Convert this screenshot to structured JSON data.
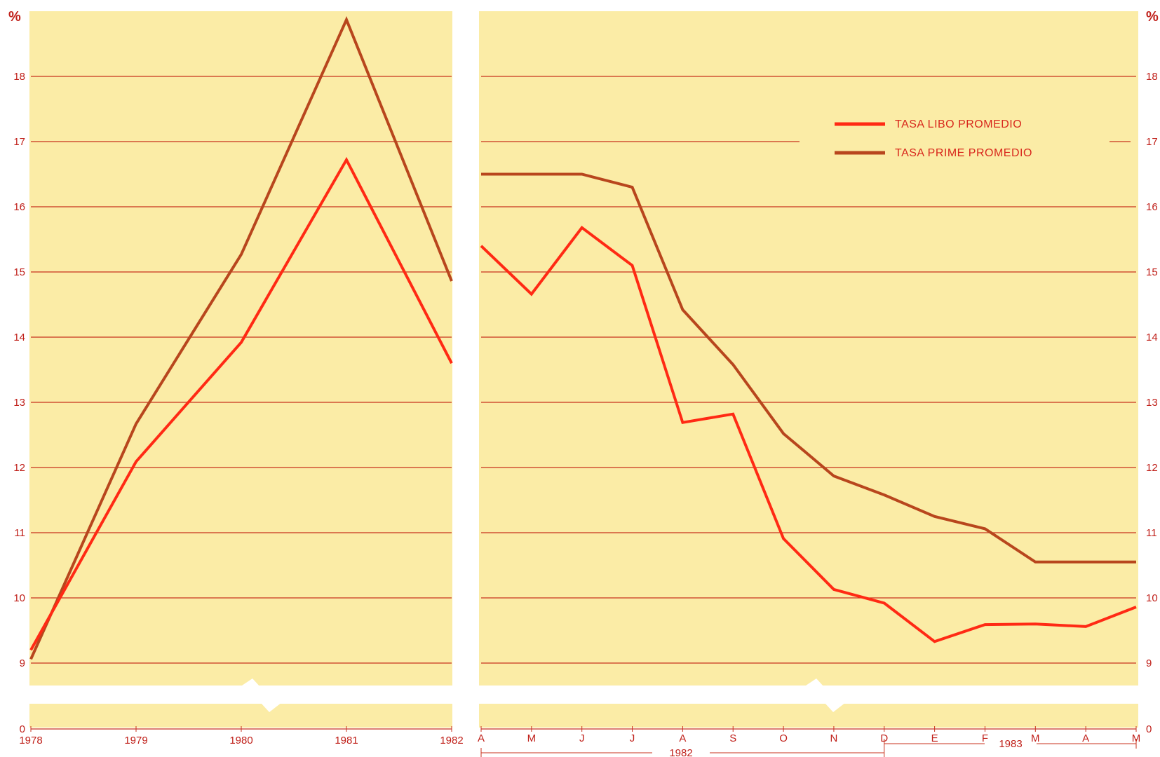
{
  "chart_data": [
    {
      "type": "line",
      "panel": "left",
      "y_unit_label": "%",
      "x": [
        "1978",
        "1979",
        "1980",
        "1981",
        "1982"
      ],
      "xtick_labels": [
        "1978",
        "1979",
        "1980",
        "1981",
        "1982"
      ],
      "yticks": [
        0,
        9,
        10,
        11,
        12,
        13,
        14,
        15,
        16,
        17,
        18
      ],
      "ylim": [
        9,
        19.3
      ],
      "axis_break": true,
      "grid": true,
      "series": [
        {
          "name": "TASA PRIME PROMEDIO",
          "color": "#b8461d",
          "values": [
            9.06,
            12.67,
            15.27,
            18.87,
            14.86
          ]
        },
        {
          "name": "TASA LIBO PROMEDIO",
          "color": "#ff2a14",
          "values": [
            9.2,
            12.09,
            13.92,
            16.72,
            13.6
          ]
        }
      ]
    },
    {
      "type": "line",
      "panel": "right",
      "y_unit_label": "%",
      "x": [
        "A",
        "M",
        "J",
        "J",
        "A",
        "S",
        "O",
        "N",
        "D",
        "E",
        "F",
        "M",
        "A",
        "M"
      ],
      "xtick_labels": [
        "A",
        "M",
        "J",
        "J",
        "A",
        "S",
        "O",
        "N",
        "D",
        "E",
        "F",
        "M",
        "A",
        "M"
      ],
      "year_labels": [
        "1982",
        "1983"
      ],
      "yticks": [
        0,
        9,
        10,
        11,
        12,
        13,
        14,
        15,
        16,
        17,
        18
      ],
      "ylim": [
        9,
        19.3
      ],
      "axis_break": true,
      "grid": true,
      "legend": "top-right",
      "series": [
        {
          "name": "TASA LIBO PROMEDIO",
          "color": "#ff2a14",
          "values": [
            15.4,
            14.66,
            15.68,
            15.1,
            12.69,
            12.82,
            10.91,
            10.13,
            9.92,
            9.33,
            9.59,
            9.6,
            9.56,
            9.86
          ]
        },
        {
          "name": "TASA PRIME PROMEDIO",
          "color": "#b8461d",
          "values": [
            16.5,
            16.5,
            16.5,
            16.3,
            14.42,
            13.58,
            12.52,
            11.87,
            11.58,
            11.25,
            11.06,
            10.55,
            10.55,
            10.55
          ]
        }
      ]
    }
  ]
}
